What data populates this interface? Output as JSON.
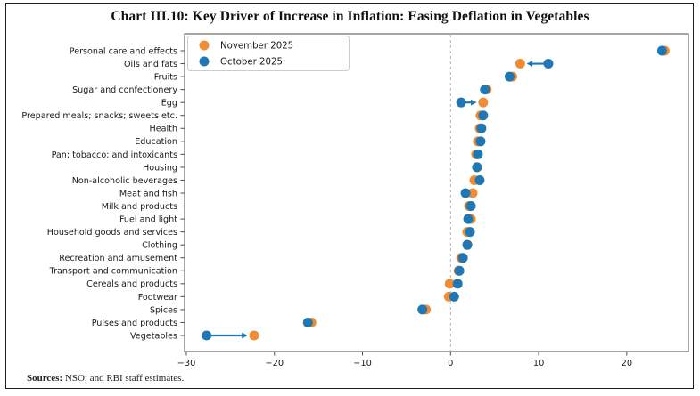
{
  "title": "Chart III.10: Key Driver of Increase in Inflation: Easing Deflation in Vegetables",
  "footer": {
    "label": "Sources:",
    "text": " NSO; and RBI staff estimates."
  },
  "chart_data": {
    "type": "scatter",
    "subtype": "horizontal-dot-plot",
    "title": "Chart III.10: Key Driver of Increase in Inflation: Easing Deflation in Vegetables",
    "xlabel": "",
    "ylabel": "",
    "xlim": [
      -30.2,
      27.0
    ],
    "xticks": [
      -30,
      -20,
      -10,
      0,
      10,
      20
    ],
    "zero_line": true,
    "grid": false,
    "legend_position": "upper-left",
    "categories": [
      "Personal care and effects",
      "Oils and fats",
      "Fruits",
      "Sugar and confectionery",
      "Egg",
      "Prepared meals; snacks; sweets etc.",
      "Health",
      "Education",
      "Pan; tobacco; and intoxicants",
      "Housing",
      "Non-alcoholic beverages",
      "Meat and fish",
      "Milk and products",
      "Fuel and light",
      "Household goods and services",
      "Clothing",
      "Recreation and amusement",
      "Transport and communication",
      "Cereals and products",
      "Footwear",
      "Spices",
      "Pulses and products",
      "Vegetables"
    ],
    "series": [
      {
        "name": "November 2025",
        "color": "#f08c33",
        "values": [
          24.3,
          7.9,
          7.0,
          4.1,
          3.7,
          3.4,
          3.3,
          3.1,
          2.9,
          3.0,
          2.7,
          2.5,
          2.1,
          2.3,
          1.9,
          1.9,
          1.2,
          0.9,
          -0.1,
          -0.2,
          -2.8,
          -15.8,
          -22.3
        ]
      },
      {
        "name": "October 2025",
        "color": "#1f77b4",
        "values": [
          24.0,
          11.1,
          6.7,
          3.9,
          1.2,
          3.7,
          3.5,
          3.4,
          3.1,
          3.0,
          3.3,
          1.7,
          2.3,
          2.0,
          2.2,
          1.9,
          1.4,
          1.0,
          0.8,
          0.4,
          -3.2,
          -16.2,
          -27.7
        ]
      }
    ],
    "arrows": [
      {
        "category": "Oils and fats",
        "from": 11.1,
        "to": 7.9
      },
      {
        "category": "Egg",
        "from": 1.2,
        "to": 3.7
      },
      {
        "category": "Vegetables",
        "from": -27.7,
        "to": -22.3
      }
    ],
    "arrow_color": "#1f77b4"
  }
}
